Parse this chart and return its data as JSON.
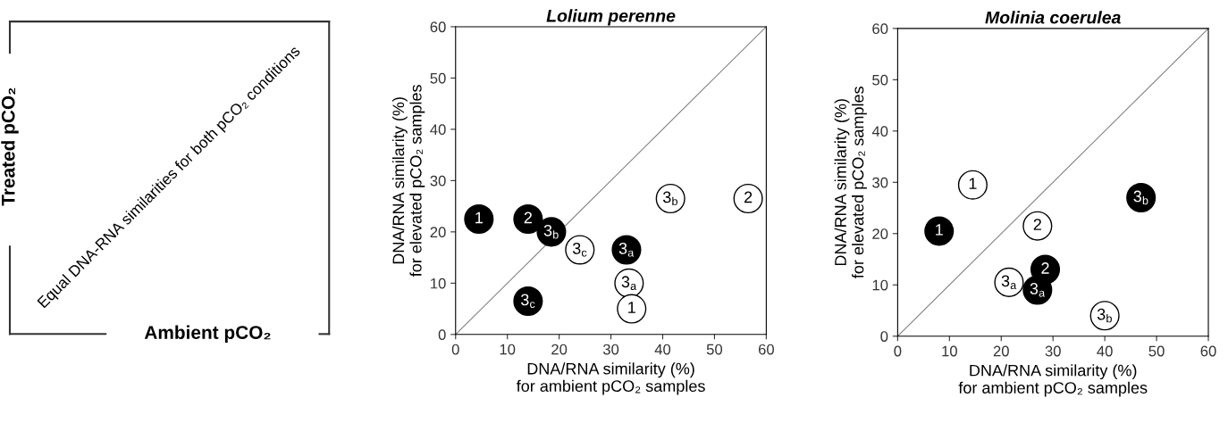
{
  "chart_data": [
    {
      "type": "other",
      "xlabel": "Ambient pCO₂",
      "ylabel": "Treated pCO₂",
      "annotations": [
        "Equal DNA-RNA similarities for both pCO₂ conditions"
      ]
    },
    {
      "type": "scatter",
      "title": "Lolium perenne",
      "xlabel": "DNA/RNA similarity (%)\nfor ambient pCO₂ samples",
      "ylabel": "DNA/RNA similarity (%)\nfor elevated pCO₂ samples",
      "xlim": [
        0,
        60
      ],
      "ylim": [
        0,
        60
      ],
      "xticks": [
        0,
        10,
        20,
        30,
        40,
        50,
        60
      ],
      "yticks": [
        0,
        10,
        20,
        30,
        40,
        50,
        60
      ],
      "grid": false,
      "marker": "circle",
      "series": [
        {
          "type": "line",
          "color": "#808080",
          "x": [
            0,
            60
          ],
          "values": [
            0,
            60
          ],
          "marker": "none"
        },
        {
          "color": "#000000",
          "x": [
            4.5,
            14,
            18.5,
            33,
            14
          ],
          "values": [
            22.5,
            22.5,
            20,
            16.5,
            6.5
          ]
        },
        {
          "color": "#ffffff",
          "x": [
            41.5,
            56.5,
            24,
            33.5,
            34
          ],
          "values": [
            26.5,
            26.5,
            16.5,
            10,
            5
          ]
        }
      ],
      "annotations": [
        {
          "text": "1",
          "x": 4.5,
          "y": 22.5
        },
        {
          "text": "2",
          "x": 14,
          "y": 22.5
        },
        {
          "text": "3$_{b}$",
          "x": 18.5,
          "y": 20
        },
        {
          "text": "3$_{a}$",
          "x": 33,
          "y": 16.5
        },
        {
          "text": "3$_{c}$",
          "x": 14,
          "y": 6.5
        },
        {
          "text": "3$_{b}$",
          "x": 41.5,
          "y": 26.5
        },
        {
          "text": "2",
          "x": 56.5,
          "y": 26.5
        },
        {
          "text": "3$_{c}$",
          "x": 24,
          "y": 16.5
        },
        {
          "text": "3$_{a}$",
          "x": 33.5,
          "y": 10
        },
        {
          "text": "1",
          "x": 34,
          "y": 5
        }
      ]
    },
    {
      "type": "scatter",
      "title": "Molinia coerulea",
      "xlabel": "DNA/RNA similarity (%)\nfor ambient pCO₂ samples",
      "ylabel": "DNA/RNA similarity (%)\nfor elevated pCO₂ samples",
      "xlim": [
        0,
        60
      ],
      "ylim": [
        0,
        60
      ],
      "xticks": [
        0,
        10,
        20,
        30,
        40,
        50,
        60
      ],
      "yticks": [
        0,
        10,
        20,
        30,
        40,
        50,
        60
      ],
      "grid": false,
      "marker": "circle",
      "series": [
        {
          "type": "line",
          "color": "#808080",
          "x": [
            0,
            60
          ],
          "values": [
            0,
            60
          ],
          "marker": "none"
        },
        {
          "color": "#000000",
          "x": [
            8,
            28.5,
            27,
            47
          ],
          "values": [
            20.5,
            13,
            9,
            27
          ]
        },
        {
          "color": "#ffffff",
          "x": [
            14.5,
            27,
            21.5,
            40
          ],
          "values": [
            29.5,
            21.5,
            10.5,
            4
          ]
        }
      ],
      "annotations": [
        {
          "text": "1",
          "x": 8,
          "y": 20.5
        },
        {
          "text": "2",
          "x": 28.5,
          "y": 13
        },
        {
          "text": "3$_{a}$",
          "x": 27,
          "y": 9
        },
        {
          "text": "3$_{b}$",
          "x": 47,
          "y": 27
        },
        {
          "text": "1",
          "x": 14.5,
          "y": 29.5
        },
        {
          "text": "2",
          "x": 27,
          "y": 21.5
        },
        {
          "text": "3$_{a}$",
          "x": 21.5,
          "y": 10.5
        },
        {
          "text": "3$_{b}$",
          "x": 40,
          "y": 4
        }
      ]
    }
  ]
}
